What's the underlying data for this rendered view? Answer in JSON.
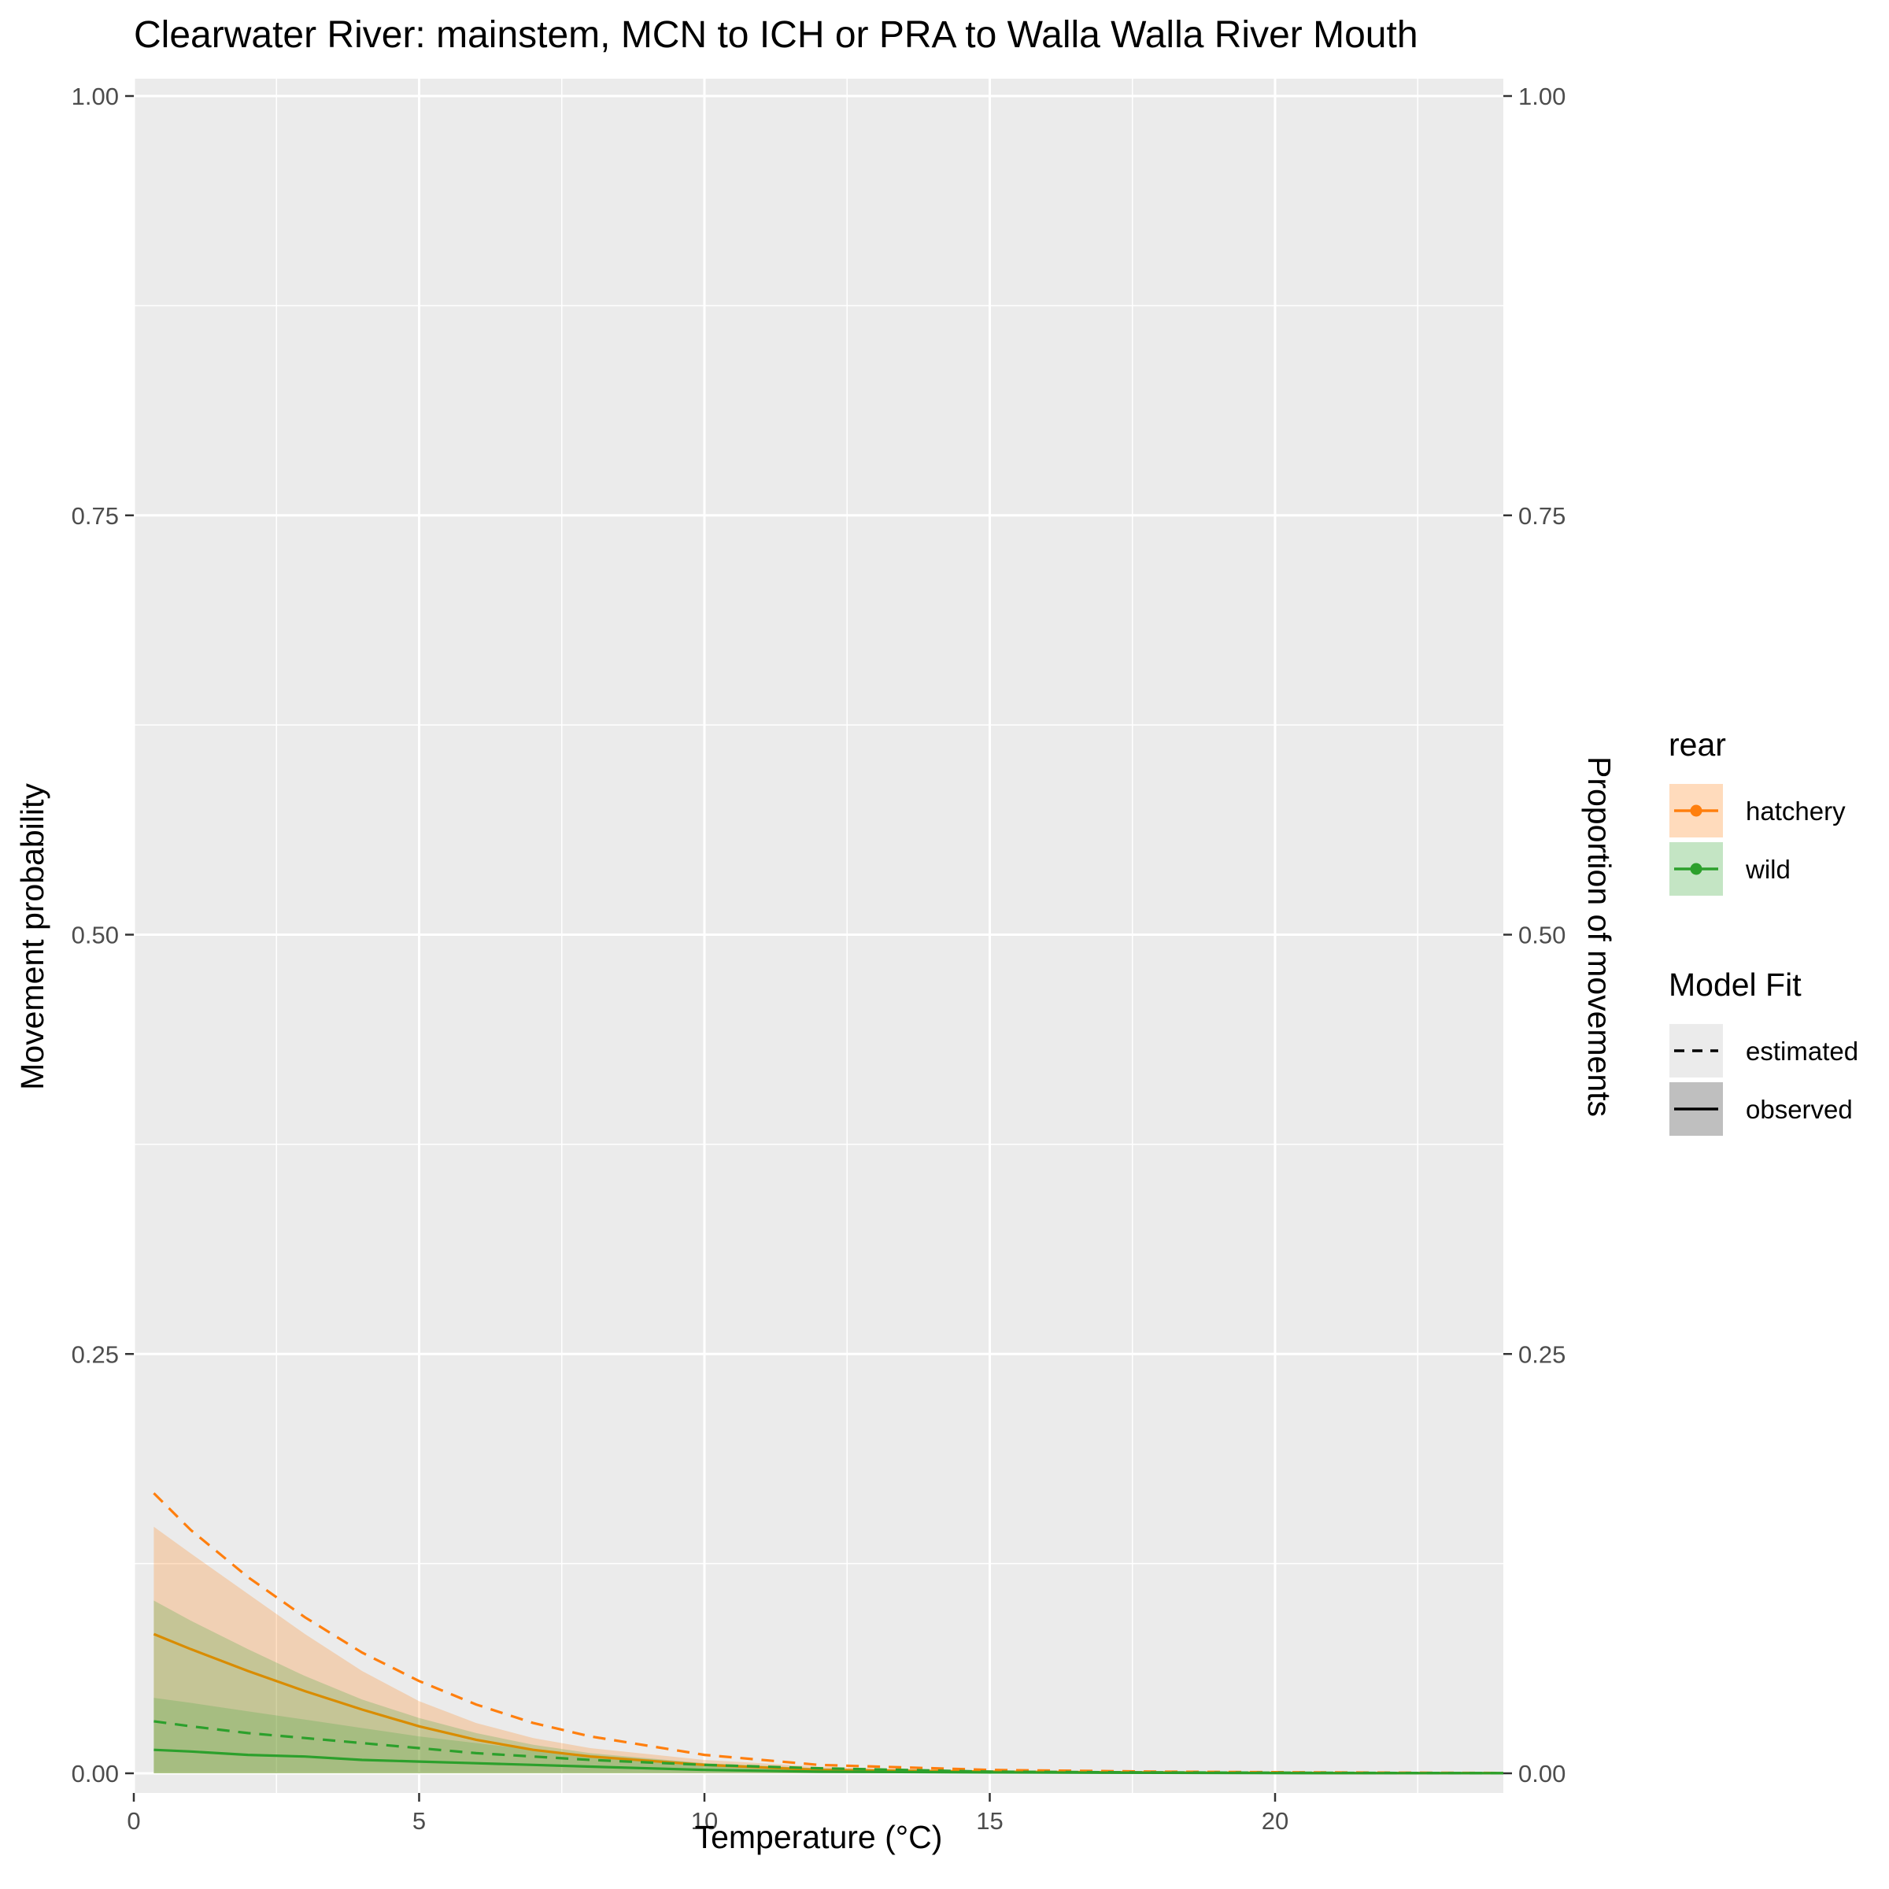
{
  "chart_data": {
    "type": "line",
    "title": "Clearwater River: mainstem, MCN to ICH or PRA to Walla Walla River Mouth",
    "xlabel": "Temperature (°C)",
    "ylabel": "Movement probability",
    "ylabel_right": "Proportion of movements",
    "xlim": [
      0,
      24
    ],
    "ylim": [
      0,
      1
    ],
    "x_ticks": [
      0,
      5,
      10,
      15,
      20
    ],
    "y_ticks": [
      0,
      0.25,
      0.5,
      0.75,
      1
    ],
    "x_tick_labels": [
      "0",
      "5",
      "10",
      "15",
      "20"
    ],
    "y_tick_labels": [
      "0.00",
      "0.25",
      "0.50",
      "0.75",
      "1.00"
    ],
    "grid": true,
    "background": "#ebebeb",
    "x": [
      0.35,
      1,
      2,
      3,
      4,
      5,
      6,
      7,
      8,
      10,
      12,
      15,
      18,
      21,
      24
    ],
    "series": [
      {
        "rear": "hatchery",
        "fit": "estimated",
        "color": "#ff7f0e",
        "dash": true,
        "values": [
          0.167,
          0.145,
          0.117,
          0.093,
          0.072,
          0.055,
          0.041,
          0.03,
          0.022,
          0.011,
          0.005,
          0.002,
          0.001,
          0.0005,
          0.0002
        ]
      },
      {
        "rear": "hatchery",
        "fit": "observed",
        "color": "#d98c00",
        "dash": false,
        "values": [
          0.083,
          0.074,
          0.061,
          0.049,
          0.038,
          0.028,
          0.02,
          0.014,
          0.01,
          0.005,
          0.002,
          0.001,
          0.0005,
          0.0002,
          0.0001
        ]
      },
      {
        "rear": "wild",
        "fit": "estimated",
        "color": "#2ca02c",
        "dash": true,
        "values": [
          0.031,
          0.028,
          0.024,
          0.021,
          0.018,
          0.015,
          0.012,
          0.01,
          0.008,
          0.005,
          0.003,
          0.001,
          0.0005,
          0.0003,
          0.0001
        ]
      },
      {
        "rear": "wild",
        "fit": "observed",
        "color": "#2ca02c",
        "dash": false,
        "values": [
          0.014,
          0.013,
          0.011,
          0.01,
          0.008,
          0.007,
          0.006,
          0.005,
          0.004,
          0.002,
          0.001,
          0.0005,
          0.0003,
          0.0001,
          0.0001
        ]
      }
    ],
    "ribbons": [
      {
        "rear": "hatchery",
        "fill": "#ff7f0e",
        "opacity": 0.25,
        "lower": [
          0.0,
          0.0,
          0.0,
          0.0,
          0.0,
          0.0,
          0.0,
          0.0,
          0.0,
          0.0,
          0.0,
          0.0,
          0.0,
          0.0,
          0.0
        ],
        "upper": [
          0.147,
          0.131,
          0.107,
          0.083,
          0.061,
          0.043,
          0.03,
          0.021,
          0.015,
          0.008,
          0.004,
          0.001,
          0.0005,
          0.0002,
          0.0001
        ]
      },
      {
        "rear": "wild",
        "fill": "#2ca02c",
        "opacity": 0.22,
        "lower": [
          0.0,
          0.0,
          0.0,
          0.0,
          0.0,
          0.0,
          0.0,
          0.0,
          0.0,
          0.0,
          0.0,
          0.0,
          0.0,
          0.0,
          0.0
        ],
        "upper": [
          0.103,
          0.091,
          0.074,
          0.058,
          0.044,
          0.033,
          0.024,
          0.017,
          0.012,
          0.006,
          0.003,
          0.001,
          0.0005,
          0.0002,
          0.0001
        ]
      },
      {
        "rear": "wild",
        "fill": "#2ca02c",
        "opacity": 0.2,
        "lower": [
          0.0,
          0.0,
          0.0,
          0.0,
          0.0,
          0.0,
          0.0,
          0.0,
          0.0,
          0.0,
          0.0,
          0.0,
          0.0,
          0.0,
          0.0
        ],
        "upper": [
          0.045,
          0.042,
          0.037,
          0.032,
          0.027,
          0.022,
          0.018,
          0.014,
          0.011,
          0.006,
          0.003,
          0.001,
          0.0005,
          0.0002,
          0.0001
        ]
      }
    ],
    "legend": {
      "placement": "right",
      "rear": {
        "title": "rear",
        "items": [
          {
            "label": "hatchery",
            "color": "#ff7f0e"
          },
          {
            "label": "wild",
            "color": "#2ca02c"
          }
        ]
      },
      "fit": {
        "title": "Model Fit",
        "items": [
          {
            "label": "estimated",
            "dash": true
          },
          {
            "label": "observed",
            "dash": false
          }
        ]
      }
    }
  }
}
